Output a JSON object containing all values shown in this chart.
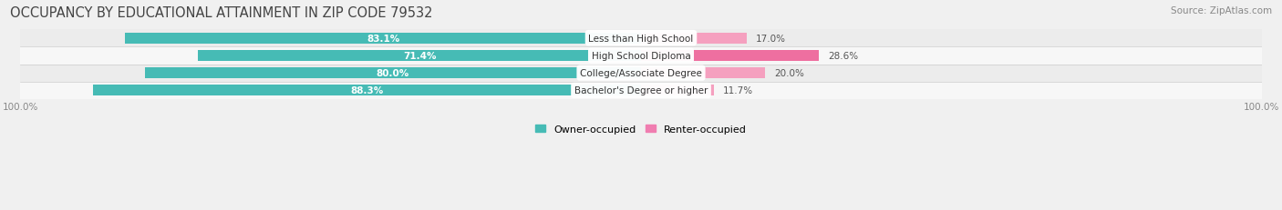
{
  "title": "OCCUPANCY BY EDUCATIONAL ATTAINMENT IN ZIP CODE 79532",
  "source": "Source: ZipAtlas.com",
  "categories": [
    "Less than High School",
    "High School Diploma",
    "College/Associate Degree",
    "Bachelor's Degree or higher"
  ],
  "owner_pct": [
    83.1,
    71.4,
    80.0,
    88.3
  ],
  "renter_pct": [
    17.0,
    28.6,
    20.0,
    11.7
  ],
  "owner_color": "#46bbb5",
  "renter_color_row": [
    "#f5a0bf",
    "#ee6fa0",
    "#f5a0bf",
    "#f5a0bf"
  ],
  "row_bg_colors": [
    "#ececec",
    "#f7f7f7",
    "#ececec",
    "#f7f7f7"
  ],
  "legend_owner": "Owner-occupied",
  "legend_renter": "Renter-occupied",
  "renter_legend_color": "#f07db0",
  "title_fontsize": 10.5,
  "bar_height": 0.62,
  "figsize": [
    14.06,
    2.32
  ],
  "dpi": 100,
  "xlim": 100,
  "axis_label": "100.0%"
}
